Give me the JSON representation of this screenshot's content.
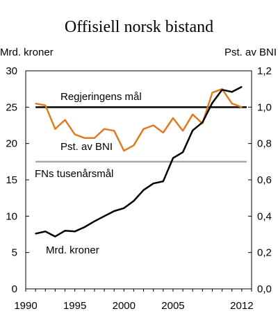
{
  "chart_data": {
    "type": "line",
    "title": "Offisiell norsk bistand",
    "ylabel_left": "Mrd. kroner",
    "ylabel_right": "Pst. av BNI",
    "xlim": [
      1990,
      2013
    ],
    "ylim_left": [
      0,
      30
    ],
    "ylim_right": [
      0.0,
      1.2
    ],
    "x_ticks": [
      "1990",
      "1995",
      "2000",
      "2005",
      "2012"
    ],
    "x_tick_values": [
      1990,
      1995,
      2000,
      2005,
      2012
    ],
    "y_ticks_left": [
      "0",
      "5",
      "10",
      "15",
      "20",
      "25",
      "30"
    ],
    "y_ticks_left_values": [
      0,
      5,
      10,
      15,
      20,
      25,
      30
    ],
    "y_ticks_right": [
      "0,0",
      "0,2",
      "0,4",
      "0,6",
      "0,8",
      "1,0",
      "1,2"
    ],
    "y_ticks_right_values": [
      0.0,
      0.2,
      0.4,
      0.6,
      0.8,
      1.0,
      1.2
    ],
    "grid": false,
    "series": [
      {
        "name": "Mrd. kroner",
        "axis": "left",
        "color": "#000000",
        "x": [
          1991,
          1992,
          1993,
          1994,
          1995,
          1996,
          1997,
          1998,
          1999,
          2000,
          2001,
          2002,
          2003,
          2004,
          2005,
          2006,
          2007,
          2008,
          2009,
          2010,
          2011,
          2012
        ],
        "values": [
          7.6,
          7.9,
          7.2,
          8.0,
          7.9,
          8.5,
          9.3,
          10.0,
          10.7,
          11.1,
          12.1,
          13.6,
          14.5,
          14.8,
          18.0,
          18.8,
          21.8,
          22.9,
          25.6,
          27.4,
          27.1,
          27.8
        ]
      },
      {
        "name": "Pst. av BNI",
        "axis": "right",
        "color": "#E07B20",
        "x": [
          1991,
          1992,
          1993,
          1994,
          1995,
          1996,
          1997,
          1998,
          1999,
          2000,
          2001,
          2002,
          2003,
          2004,
          2005,
          2006,
          2007,
          2008,
          2009,
          2010,
          2011,
          2012
        ],
        "values": [
          1.02,
          1.01,
          0.88,
          0.93,
          0.85,
          0.83,
          0.83,
          0.88,
          0.87,
          0.76,
          0.79,
          0.88,
          0.9,
          0.86,
          0.94,
          0.87,
          0.96,
          0.91,
          1.08,
          1.1,
          1.02,
          1.0
        ]
      }
    ],
    "reference_lines": [
      {
        "label": "Regjeringens mål",
        "axis": "right",
        "value": 1.0,
        "color": "#000000"
      },
      {
        "label": "FNs tusenårsmål",
        "axis": "right",
        "value": 0.7,
        "color": "#A6A6A6"
      }
    ],
    "annotations": {
      "mrd_label": "Mrd. kroner",
      "pst_label": "Pst. av BNI"
    }
  }
}
